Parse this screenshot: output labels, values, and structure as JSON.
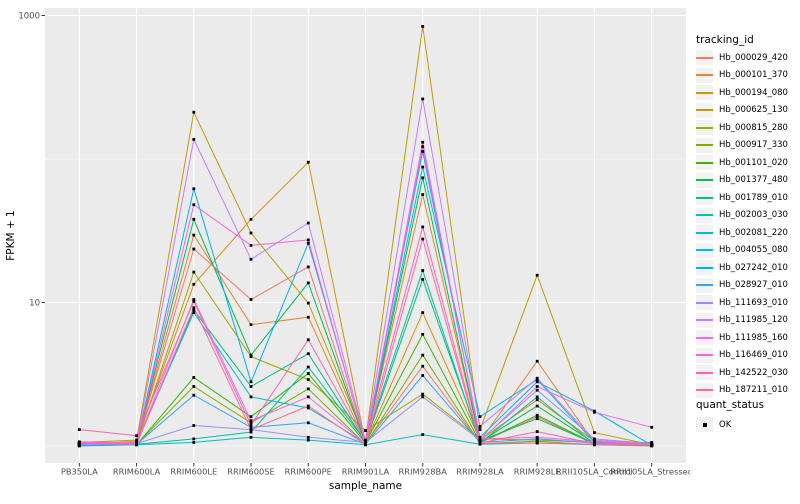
{
  "chart_data": {
    "type": "line",
    "title": "",
    "xlabel": "sample_name",
    "ylabel": "FPKM + 1",
    "y_scale": "log10",
    "y_tick_labels": [
      "10",
      "1000"
    ],
    "y_ticks": [
      10,
      1000
    ],
    "y_minor_gridlines": [
      1,
      100
    ],
    "grid": "on",
    "panel_bg": "#EBEBEB",
    "grid_color": "#FFFFFF",
    "point_color": "#000000",
    "axis_text_color": "#4D4D4D",
    "categories": [
      "PB350LA",
      "RRIM600LA",
      "RRIM600LE",
      "RRIM600SE",
      "RRIM600PE",
      "RRIM901LA",
      "RRIM928BA",
      "RRIM928LA",
      "RRIM928LE",
      "RRII105LA_Control",
      "RRII105LA_Stressed"
    ],
    "series": [
      {
        "name": "Hb_000029_420",
        "color": "#F8766D",
        "values": [
          1.05,
          1.06,
          23.6,
          10.5,
          17.7,
          1.04,
          3.6,
          1.05,
          1.6,
          1.03,
          1.02
        ]
      },
      {
        "name": "Hb_000101_370",
        "color": "#EA8331",
        "values": [
          1.03,
          1.05,
          29.5,
          7.0,
          7.9,
          1.06,
          56.5,
          1.08,
          3.9,
          1.05,
          1.01
        ]
      },
      {
        "name": "Hb_000194_080",
        "color": "#D89000",
        "values": [
          1.02,
          1.08,
          13.4,
          38.0,
          95.0,
          1.05,
          8.5,
          1.1,
          2.1,
          1.08,
          1.03
        ]
      },
      {
        "name": "Hb_000625_130",
        "color": "#C09B00",
        "values": [
          1.06,
          1.1,
          212.0,
          30.5,
          9.9,
          1.1,
          840.0,
          1.3,
          15.5,
          1.24,
          1.02
        ]
      },
      {
        "name": "Hb_000815_280",
        "color": "#A3A500",
        "values": [
          1.01,
          1.04,
          16.3,
          4.2,
          2.9,
          1.28,
          2.3,
          1.12,
          1.1,
          1.06,
          1.04
        ]
      },
      {
        "name": "Hb_000917_330",
        "color": "#7CAE00",
        "values": [
          1.02,
          1.03,
          2.6,
          1.45,
          2.5,
          1.03,
          4.3,
          1.04,
          1.08,
          1.02,
          1.0
        ]
      },
      {
        "name": "Hb_001101_020",
        "color": "#39B600",
        "values": [
          1.01,
          1.02,
          3.0,
          1.6,
          3.2,
          1.05,
          6.0,
          1.06,
          1.64,
          1.04,
          1.01
        ]
      },
      {
        "name": "Hb_001377_480",
        "color": "#00BB4E",
        "values": [
          1.03,
          1.05,
          38.0,
          4.3,
          13.7,
          1.04,
          74.0,
          1.07,
          1.9,
          1.05,
          1.02
        ]
      },
      {
        "name": "Hb_001789_010",
        "color": "#00BF7D",
        "values": [
          1.02,
          1.04,
          8.9,
          2.6,
          4.4,
          1.06,
          14.5,
          1.09,
          1.55,
          1.04,
          1.03
        ]
      },
      {
        "name": "Hb_002003_030",
        "color": "#00C1A3",
        "values": [
          1.01,
          1.03,
          1.12,
          1.25,
          3.55,
          1.08,
          16.7,
          1.05,
          2.2,
          1.03,
          1.06
        ]
      },
      {
        "name": "Hb_002081_220",
        "color": "#00BFC4",
        "values": [
          1.0,
          1.02,
          1.06,
          1.15,
          1.1,
          1.02,
          1.2,
          1.03,
          1.05,
          1.02,
          1.01
        ]
      },
      {
        "name": "Hb_004055_080",
        "color": "#00BADE",
        "values": [
          1.02,
          1.06,
          8.5,
          2.2,
          1.84,
          1.05,
          88.0,
          1.6,
          2.9,
          1.06,
          1.02
        ]
      },
      {
        "name": "Hb_027242_010",
        "color": "#00B0F6",
        "values": [
          1.03,
          1.05,
          62.0,
          2.8,
          25.9,
          1.07,
          113.0,
          1.15,
          2.8,
          1.75,
          1.01
        ]
      },
      {
        "name": "Hb_028927_010",
        "color": "#35A2FF",
        "values": [
          1.01,
          1.03,
          2.26,
          1.35,
          1.45,
          1.03,
          3.1,
          1.06,
          1.12,
          1.05,
          1.02
        ]
      },
      {
        "name": "Hb_111693_010",
        "color": "#9590FF",
        "values": [
          1.02,
          1.04,
          1.39,
          1.3,
          1.15,
          1.06,
          2.2,
          1.1,
          2.45,
          1.12,
          1.04
        ]
      },
      {
        "name": "Hb_111985_120",
        "color": "#C77CFF",
        "values": [
          1.06,
          1.06,
          137.0,
          20.0,
          35.8,
          1.08,
          262.0,
          1.37,
          2.97,
          1.1,
          1.03
        ]
      },
      {
        "name": "Hb_111985_160",
        "color": "#E76BF3",
        "values": [
          1.05,
          1.04,
          10.5,
          1.5,
          2.2,
          1.04,
          131.0,
          1.08,
          2.6,
          1.72,
          1.35
        ]
      },
      {
        "name": "Hb_116469_010",
        "color": "#FA62DB",
        "values": [
          1.07,
          1.05,
          48.0,
          25.0,
          27.3,
          1.05,
          122.0,
          1.12,
          1.15,
          1.07,
          1.02
        ]
      },
      {
        "name": "Hb_142522_030",
        "color": "#FF62BC",
        "values": [
          1.3,
          1.18,
          10.2,
          1.4,
          5.5,
          1.07,
          33.6,
          1.05,
          1.26,
          1.04,
          1.03
        ]
      },
      {
        "name": "Hb_187211_010",
        "color": "#FF6A98",
        "values": [
          1.04,
          1.03,
          9.2,
          1.3,
          1.9,
          1.02,
          27.7,
          1.04,
          1.05,
          1.03,
          1.01
        ]
      }
    ],
    "legend": {
      "tracking_title": "tracking_id",
      "quant_title": "quant_status",
      "quant_items": [
        "OK"
      ]
    }
  }
}
